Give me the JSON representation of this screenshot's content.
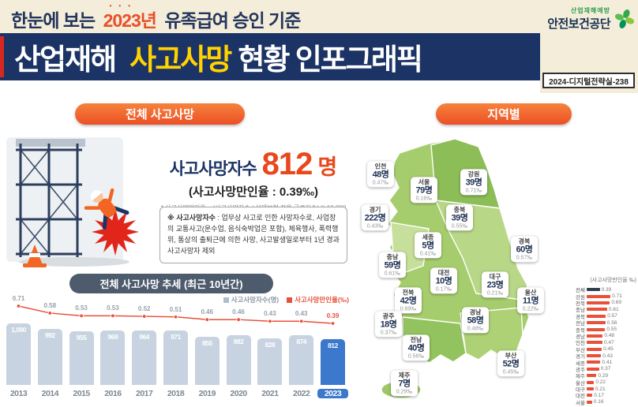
{
  "header": {
    "top_title": {
      "prefix": "한눈에 보는",
      "year": "2023년",
      "suffix": "유족급여 승인 기준"
    },
    "main_title": {
      "part1": "산업재해",
      "highlight": "사고사망",
      "part2": "현황 인포그래픽"
    },
    "logo": {
      "tagline": "산업재해예방",
      "name": "안전보건공단"
    },
    "doc_code": "2024-디지털전략실-238"
  },
  "overall": {
    "section_title": "전체 사고사망",
    "deaths_label": "사고사망자수",
    "deaths_number": "812",
    "deaths_unit": "명",
    "rate_line": "(사고사망만인율 : 0.39‰)",
    "formula_note": "* 사고사망만인율 = (사고사망자수 / 산재보험 적용 근로자수) X 10,000",
    "definition_head": "※ 사고사망자수",
    "definition_body": " : 업무상 사고로 인한 사망자수로, 사업장의 교통사고(운수업, 음식숙박업은 포함), 체육행사, 폭력행위, 통상의 출퇴근에 의한 사망, 사고발생일로부터 1년 경과 사고사망자 제외"
  },
  "trend": {
    "section_title": "전체 사고사망 추세 (최근 10년간)",
    "legend": [
      {
        "label": "사고사망자수(명)",
        "color": "#aebdcc",
        "text_color": "#8a97a5"
      },
      {
        "label": "사고사망만인율(‰)",
        "color": "#e8503a",
        "text_color": "#e8503a"
      }
    ]
  },
  "region": {
    "section_title": "지역별",
    "mini_chart_title": "(사고사망만인율 ‰)"
  },
  "chart_data": [
    {
      "type": "bar",
      "title": "전체 사고사망 추세 (최근 10년간)",
      "categories": [
        "2013",
        "2014",
        "2015",
        "2016",
        "2017",
        "2018",
        "2019",
        "2020",
        "2021",
        "2022",
        "2023"
      ],
      "series": [
        {
          "name": "사고사망자수(명)",
          "type": "bar",
          "values": [
            1090,
            992,
            955,
            969,
            964,
            971,
            855,
            882,
            828,
            874,
            812
          ],
          "labels": [
            "1,090",
            "992",
            "955",
            "969",
            "964",
            "971",
            "855",
            "882",
            "828",
            "874",
            "812"
          ]
        },
        {
          "name": "사고사망만인율(‰)",
          "type": "line",
          "values": [
            0.71,
            0.58,
            0.53,
            0.53,
            0.52,
            0.51,
            0.46,
            0.46,
            0.43,
            0.43,
            0.39
          ]
        }
      ],
      "highlight_category": "2023",
      "ylim": [
        0,
        1090
      ]
    },
    {
      "type": "map",
      "title": "지역별 사고사망",
      "regions": [
        {
          "name": "인천",
          "count": "48명",
          "rate": "0.47‰"
        },
        {
          "name": "서울",
          "count": "79명",
          "rate": "0.16‰"
        },
        {
          "name": "강원",
          "count": "39명",
          "rate": "0.71‰"
        },
        {
          "name": "경기",
          "count": "222명",
          "rate": "0.43‰"
        },
        {
          "name": "충북",
          "count": "39명",
          "rate": "0.55‰"
        },
        {
          "name": "세종",
          "count": "5명",
          "rate": "0.41‰"
        },
        {
          "name": "충남",
          "count": "59명",
          "rate": "0.61‰"
        },
        {
          "name": "대전",
          "count": "10명",
          "rate": "0.17‰"
        },
        {
          "name": "대구",
          "count": "23명",
          "rate": "0.21‰"
        },
        {
          "name": "경북",
          "count": "60명",
          "rate": "0.57‰"
        },
        {
          "name": "전북",
          "count": "42명",
          "rate": "0.69‰"
        },
        {
          "name": "울산",
          "count": "11명",
          "rate": "0.22‰"
        },
        {
          "name": "광주",
          "count": "18명",
          "rate": "0.37‰"
        },
        {
          "name": "경남",
          "count": "58명",
          "rate": "0.48‰"
        },
        {
          "name": "전남",
          "count": "40명",
          "rate": "0.56‰"
        },
        {
          "name": "부산",
          "count": "52명",
          "rate": "0.45‰"
        },
        {
          "name": "제주",
          "count": "7명",
          "rate": "0.29‰"
        }
      ]
    },
    {
      "type": "bar",
      "orientation": "horizontal",
      "title": "(사고사망만인율 ‰)",
      "categories": [
        "전체",
        "강원",
        "전북",
        "충남",
        "경북",
        "전남",
        "충북",
        "경남",
        "인천",
        "부산",
        "경기",
        "세종",
        "광주",
        "제주",
        "울산",
        "대구",
        "대전",
        "서울"
      ],
      "values": [
        0.39,
        0.71,
        0.69,
        0.61,
        0.57,
        0.56,
        0.55,
        0.48,
        0.47,
        0.45,
        0.43,
        0.41,
        0.37,
        0.29,
        0.22,
        0.21,
        0.17,
        0.16
      ],
      "xlim": [
        0,
        0.8
      ]
    }
  ]
}
